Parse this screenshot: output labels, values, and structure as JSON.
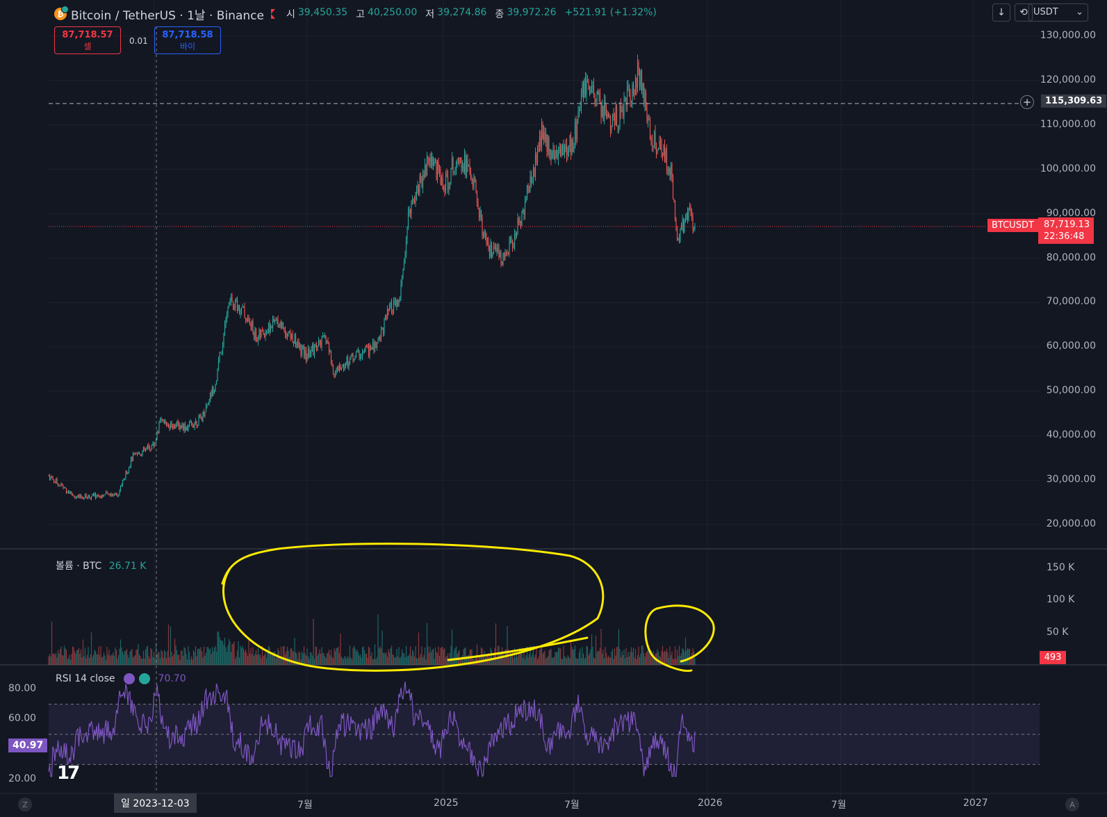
{
  "header": {
    "symbol_title": "Bitcoin / TetherUS · 1날 · Binance",
    "ohlc": {
      "open_label": "시",
      "open": "39,450.35",
      "high_label": "고",
      "high": "40,250.00",
      "low_label": "저",
      "low": "39,274.86",
      "close_label": "종",
      "close": "39,972.26",
      "change": "+521.91 (+1.32%)"
    }
  },
  "trade": {
    "sell_price": "87,718.57",
    "sell_label": "셀",
    "spread": "0.01",
    "buy_price": "87,718.58",
    "buy_label": "바이"
  },
  "toolbar": {
    "currency": "USDT",
    "currency_caret": "⌄",
    "download_icon": "↓",
    "compare_icon": "⟲"
  },
  "price_axis": {
    "labels": [
      "130,000.00",
      "120,000.00",
      "110,000.00",
      "100,000.00",
      "90,000.00",
      "80,000.00",
      "70,000.00",
      "60,000.00",
      "50,000.00",
      "40,000.00",
      "30,000.00",
      "20,000.00"
    ],
    "crosshair_price": "115,309.63",
    "symbol_tag": "BTCUSDT",
    "last_price": "87,719.13",
    "countdown": "22:36:48"
  },
  "volume": {
    "title": "볼륨 · BTC",
    "value": "26.71 K",
    "axis_labels": [
      "150 K",
      "100 K",
      "50 K"
    ],
    "last_badge": "493"
  },
  "rsi": {
    "title": "RSI 14 close",
    "value": "70.70",
    "axis_labels": [
      "80.00",
      "60.00",
      "20.00"
    ],
    "current_badge": "40.97"
  },
  "time_axis": {
    "crosshair_date": "일 2023-12-03",
    "labels": [
      "7월",
      "2025",
      "7월",
      "2026",
      "7월",
      "2027"
    ],
    "left_button": "Z",
    "right_button": "A"
  },
  "logo": "17",
  "colors": {
    "background": "#131722",
    "up": "#26a69a",
    "down": "#ef5350",
    "rsi_line": "#7e57c2",
    "annotation": "#ffeb00",
    "last_price_bg": "#f23645"
  }
}
